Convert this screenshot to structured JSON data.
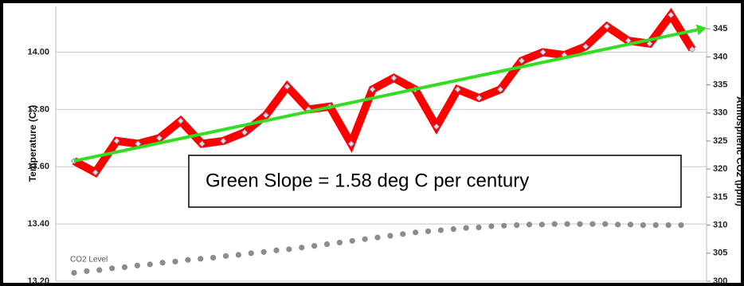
{
  "chart_data": {
    "type": "line",
    "y_title": "Temperature (C°)",
    "y2_title": "Atmospheric CO2 (ppm)",
    "annotation": "Green Slope = 1.58 deg C per century",
    "ylim": [
      13.2,
      14.16
    ],
    "yticks": [
      {
        "value": 13.2,
        "label": "13.20"
      },
      {
        "value": 13.4,
        "label": "13.40"
      },
      {
        "value": 13.6,
        "label": "13.60"
      },
      {
        "value": 13.8,
        "label": "13.80"
      },
      {
        "value": 14.0,
        "label": "14.00"
      }
    ],
    "y2lim": [
      300,
      349
    ],
    "y2ticks": [
      300,
      305,
      310,
      315,
      320,
      325,
      330,
      335,
      340,
      345
    ],
    "grid": true,
    "series": [
      {
        "color": "#ff0000",
        "values": [
          13.62,
          13.58,
          13.69,
          13.68,
          13.7,
          13.76,
          13.68,
          13.69,
          13.72,
          13.78,
          13.88,
          13.8,
          13.81,
          13.68,
          13.87,
          13.91,
          13.87,
          13.74,
          13.87,
          13.84,
          13.87,
          13.97,
          14.0,
          13.99,
          14.02,
          14.09,
          14.04,
          14.03,
          14.13,
          14.01
        ]
      },
      {
        "name": "CO2 Level",
        "color": "#8c8c8c",
        "axis": "y2",
        "values": [
          301.5,
          301.8,
          302.0,
          302.3,
          302.5,
          302.8,
          303.0,
          303.3,
          303.5,
          303.8,
          304.0,
          304.2,
          304.5,
          304.7,
          305.0,
          305.2,
          305.5,
          305.7,
          306.0,
          306.3,
          306.6,
          306.9,
          307.2,
          307.5,
          307.8,
          308.1,
          308.4,
          308.7,
          308.9,
          309.1,
          309.3,
          309.5,
          309.6,
          309.8,
          309.9,
          310.0,
          310.1,
          310.1,
          310.2,
          310.2,
          310.2,
          310.2,
          310.2,
          310.1,
          310.1,
          310.0,
          310.0,
          310.0,
          310.0
        ]
      }
    ],
    "trend": {
      "color": "#33dd22",
      "values": [
        13.62,
        14.085
      ]
    }
  }
}
